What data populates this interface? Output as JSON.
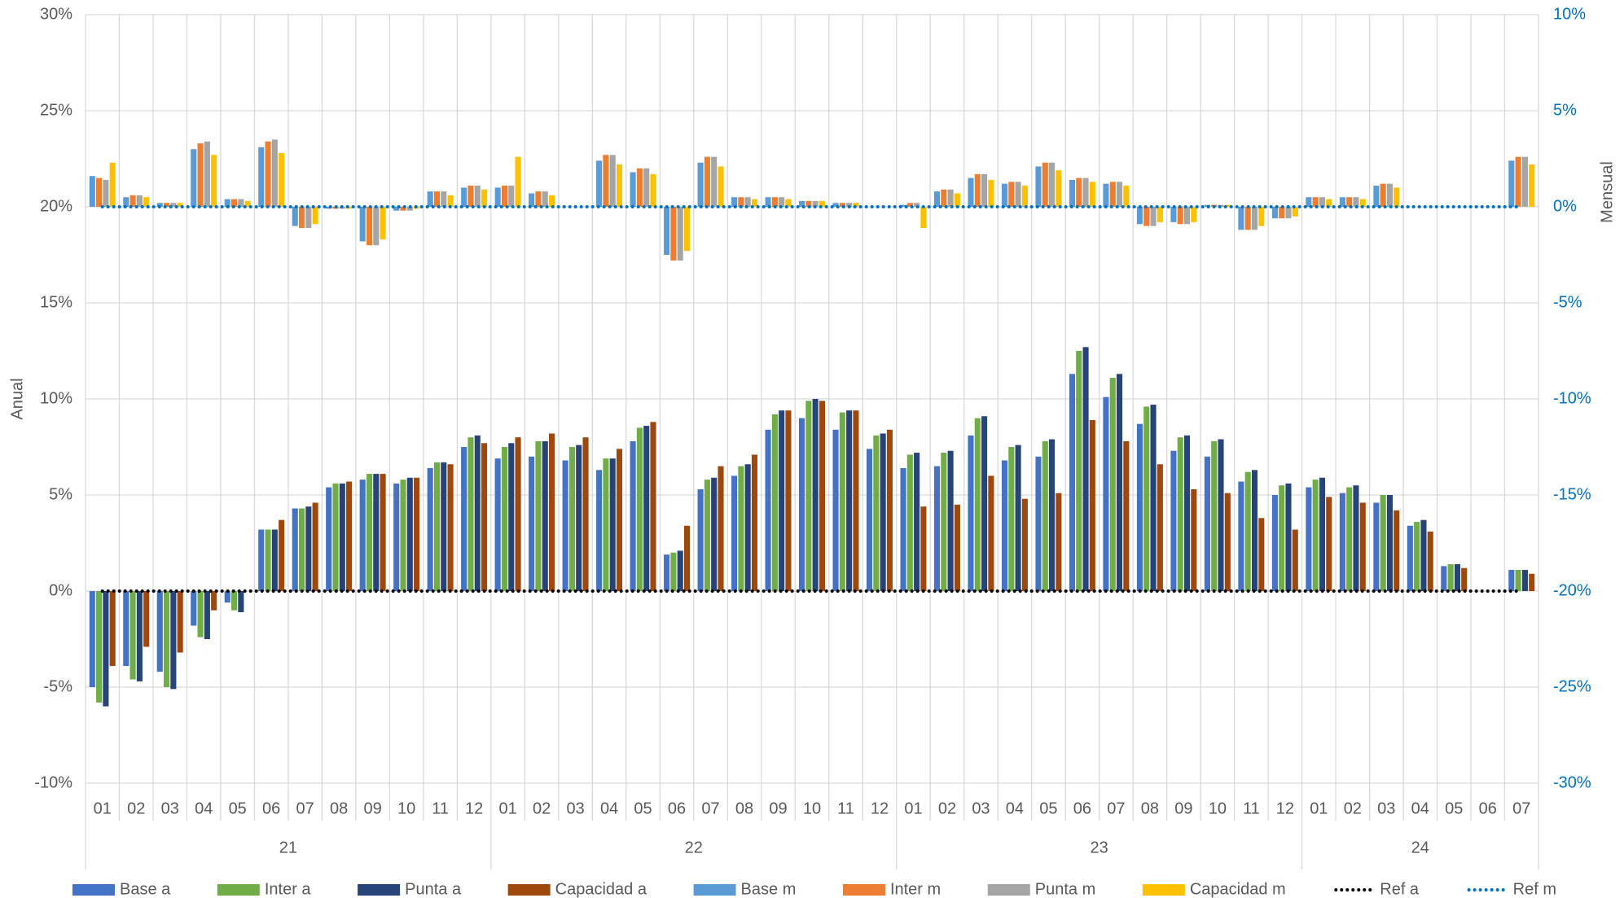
{
  "chart_data": {
    "type": "bar",
    "ylabel": "Anual",
    "y2label": "Mensual",
    "categories": [
      "01",
      "02",
      "03",
      "04",
      "05",
      "06",
      "07",
      "08",
      "09",
      "10",
      "11",
      "12",
      "01",
      "02",
      "03",
      "04",
      "05",
      "06",
      "07",
      "08",
      "09",
      "10",
      "11",
      "12",
      "01",
      "02",
      "03",
      "04",
      "05",
      "06",
      "07",
      "08",
      "09",
      "10",
      "11",
      "12",
      "01",
      "02",
      "03",
      "04",
      "05",
      "06",
      "07"
    ],
    "x_groups": [
      "21",
      "22",
      "23",
      "24"
    ],
    "ylim": [
      -10,
      30
    ],
    "yticks": [
      {
        "value": -10,
        "label": "-10%"
      },
      {
        "value": -5,
        "label": "-5%"
      },
      {
        "value": 0,
        "label": "0%"
      },
      {
        "value": 5,
        "label": "5%"
      },
      {
        "value": 10,
        "label": "10%"
      },
      {
        "value": 15,
        "label": "15%"
      },
      {
        "value": 20,
        "label": "20%"
      },
      {
        "value": 25,
        "label": "25%"
      },
      {
        "value": 30,
        "label": "30%"
      }
    ],
    "y2lim": [
      -30,
      10
    ],
    "y2ticks": [
      {
        "value": -30,
        "label": "-30%"
      },
      {
        "value": -25,
        "label": "-25%"
      },
      {
        "value": -20,
        "label": "-20%"
      },
      {
        "value": -15,
        "label": "-15%"
      },
      {
        "value": -10,
        "label": "-10%"
      },
      {
        "value": -5,
        "label": "-5%"
      },
      {
        "value": 0,
        "label": "0%"
      },
      {
        "value": 5,
        "label": "5%"
      },
      {
        "value": 10,
        "label": "10%"
      }
    ],
    "grid": true,
    "legend": "bottom",
    "series": [
      {
        "name": "Base a",
        "type": "bar",
        "color": "#4472c4",
        "values": [
          -5.0,
          -3.9,
          -4.2,
          -1.8,
          -0.6,
          3.2,
          4.3,
          5.4,
          5.8,
          5.6,
          6.4,
          7.5,
          6.9,
          7.0,
          6.8,
          6.3,
          7.8,
          1.9,
          5.3,
          6.0,
          8.4,
          9.0,
          8.4,
          7.4,
          6.4,
          6.5,
          8.1,
          6.8,
          7.0,
          11.3,
          10.1,
          8.7,
          7.3,
          7.0,
          5.7,
          5.0,
          5.4,
          5.1,
          4.6,
          3.4,
          1.3,
          null,
          1.1
        ]
      },
      {
        "name": "Inter a",
        "type": "bar",
        "color": "#70ad47",
        "values": [
          -5.8,
          -4.6,
          -5.0,
          -2.4,
          -1.0,
          3.2,
          4.3,
          5.6,
          6.1,
          5.8,
          6.7,
          8.0,
          7.5,
          7.8,
          7.5,
          6.9,
          8.5,
          2.0,
          5.8,
          6.5,
          9.2,
          9.9,
          9.3,
          8.1,
          7.1,
          7.2,
          9.0,
          7.5,
          7.8,
          12.5,
          11.1,
          9.6,
          8.0,
          7.8,
          6.2,
          5.5,
          5.8,
          5.4,
          5.0,
          3.6,
          1.4,
          null,
          1.1
        ]
      },
      {
        "name": "Punta a",
        "type": "bar",
        "color": "#264478",
        "values": [
          -6.0,
          -4.7,
          -5.1,
          -2.5,
          -1.1,
          3.2,
          4.4,
          5.6,
          6.1,
          5.9,
          6.7,
          8.1,
          7.7,
          7.8,
          7.6,
          6.9,
          8.6,
          2.1,
          5.9,
          6.6,
          9.4,
          10.0,
          9.4,
          8.2,
          7.2,
          7.3,
          9.1,
          7.6,
          7.9,
          12.7,
          11.3,
          9.7,
          8.1,
          7.9,
          6.3,
          5.6,
          5.9,
          5.5,
          5.0,
          3.7,
          1.4,
          null,
          1.1
        ]
      },
      {
        "name": "Capacidad a",
        "type": "bar",
        "color": "#9e480e",
        "values": [
          -3.9,
          -2.9,
          -3.2,
          -1.0,
          null,
          3.7,
          4.6,
          5.7,
          6.1,
          5.9,
          6.6,
          7.7,
          8.0,
          8.2,
          8.0,
          7.4,
          8.8,
          3.4,
          6.5,
          7.1,
          9.4,
          9.9,
          9.4,
          8.4,
          4.4,
          4.5,
          6.0,
          4.8,
          5.1,
          8.9,
          7.8,
          6.6,
          5.3,
          5.1,
          3.8,
          3.2,
          4.9,
          4.6,
          4.2,
          3.1,
          1.2,
          null,
          0.9
        ]
      },
      {
        "name": "Base m",
        "type": "bar",
        "axis": "y2",
        "color": "#5b9bd5",
        "values": [
          1.6,
          0.5,
          0.2,
          3.0,
          0.4,
          3.1,
          -1.0,
          -0.1,
          -1.8,
          -0.2,
          0.8,
          1.0,
          1.0,
          0.7,
          null,
          2.4,
          1.8,
          -2.5,
          2.3,
          0.5,
          0.5,
          0.3,
          0.2,
          null,
          0.1,
          0.8,
          1.5,
          1.2,
          2.1,
          1.4,
          1.2,
          -0.9,
          -0.8,
          0.1,
          -1.2,
          -0.6,
          0.5,
          0.5,
          1.1,
          null,
          null,
          null,
          2.4
        ]
      },
      {
        "name": "Inter m",
        "type": "bar",
        "axis": "y2",
        "color": "#ed7d31",
        "values": [
          1.5,
          0.6,
          0.2,
          3.3,
          0.4,
          3.4,
          -1.1,
          -0.1,
          -2.0,
          -0.2,
          0.8,
          1.1,
          1.1,
          0.8,
          null,
          2.7,
          2.0,
          -2.8,
          2.6,
          0.5,
          0.5,
          0.3,
          0.2,
          null,
          0.2,
          0.9,
          1.7,
          1.3,
          2.3,
          1.5,
          1.3,
          -1.0,
          -0.9,
          0.1,
          -1.2,
          -0.6,
          0.5,
          0.5,
          1.2,
          null,
          null,
          null,
          2.6
        ]
      },
      {
        "name": "Punta m",
        "type": "bar",
        "axis": "y2",
        "color": "#a5a5a5",
        "values": [
          1.4,
          0.6,
          0.2,
          3.4,
          0.4,
          3.5,
          -1.1,
          -0.1,
          -2.0,
          -0.2,
          0.8,
          1.1,
          1.1,
          0.8,
          null,
          2.7,
          2.0,
          -2.8,
          2.6,
          0.5,
          0.5,
          0.3,
          0.2,
          null,
          0.2,
          0.9,
          1.7,
          1.3,
          2.3,
          1.5,
          1.3,
          -1.0,
          -0.9,
          0.1,
          -1.2,
          -0.6,
          0.5,
          0.5,
          1.2,
          null,
          null,
          null,
          2.6
        ]
      },
      {
        "name": "Capacidad m",
        "type": "bar",
        "axis": "y2",
        "color": "#ffc000",
        "values": [
          2.3,
          0.5,
          0.2,
          2.7,
          0.3,
          2.8,
          -0.9,
          -0.1,
          -1.7,
          -0.1,
          0.6,
          0.9,
          2.6,
          0.6,
          null,
          2.2,
          1.7,
          -2.3,
          2.1,
          0.4,
          0.4,
          0.3,
          0.2,
          null,
          -1.1,
          0.7,
          1.4,
          1.1,
          1.9,
          1.3,
          1.1,
          -0.8,
          -0.8,
          0.1,
          -1.0,
          -0.5,
          0.4,
          0.4,
          1.0,
          null,
          null,
          null,
          2.2
        ]
      },
      {
        "name": "Ref a",
        "type": "line",
        "color": "#000000",
        "values": [
          0,
          0,
          0,
          0,
          0,
          0,
          0,
          0,
          0,
          0,
          0,
          0,
          0,
          0,
          0,
          0,
          0,
          0,
          0,
          0,
          0,
          0,
          0,
          0,
          0,
          0,
          0,
          0,
          0,
          0,
          0,
          0,
          0,
          0,
          0,
          0,
          0,
          0,
          0,
          0,
          0,
          0,
          0
        ]
      },
      {
        "name": "Ref m",
        "type": "line",
        "axis": "y2",
        "color": "#0070c0",
        "values": [
          0,
          0,
          0,
          0,
          0,
          0,
          0,
          0,
          0,
          0,
          0,
          0,
          0,
          0,
          0,
          0,
          0,
          0,
          0,
          0,
          0,
          0,
          0,
          0,
          0,
          0,
          0,
          0,
          0,
          0,
          0,
          0,
          0,
          0,
          0,
          0,
          0,
          0,
          0,
          0,
          0,
          0,
          0
        ]
      }
    ]
  }
}
